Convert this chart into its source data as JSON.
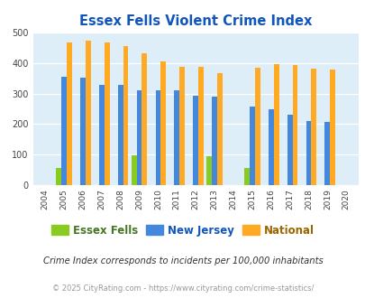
{
  "title": "Essex Fells Violent Crime Index",
  "years": [
    2004,
    2005,
    2006,
    2007,
    2008,
    2009,
    2010,
    2011,
    2012,
    2013,
    2014,
    2015,
    2016,
    2017,
    2018,
    2019,
    2020
  ],
  "essex_fells": [
    0,
    54,
    0,
    0,
    0,
    97,
    0,
    0,
    0,
    93,
    0,
    55,
    0,
    0,
    0,
    0,
    0
  ],
  "new_jersey": [
    0,
    356,
    352,
    330,
    330,
    312,
    310,
    310,
    293,
    289,
    0,
    256,
    248,
    231,
    211,
    207,
    0
  ],
  "national": [
    0,
    469,
    474,
    467,
    455,
    432,
    405,
    387,
    387,
    368,
    0,
    384,
    398,
    394,
    381,
    379,
    0
  ],
  "color_essex": "#88cc22",
  "color_nj": "#4488dd",
  "color_national": "#ffaa22",
  "plot_bg": "#ddeef8",
  "title_color": "#1155bb",
  "legend_essex": "Essex Fells",
  "legend_nj": "New Jersey",
  "legend_national": "National",
  "footnote1": "Crime Index corresponds to incidents per 100,000 inhabitants",
  "footnote2": "© 2025 CityRating.com - https://www.cityrating.com/crime-statistics/",
  "ylim": [
    0,
    500
  ],
  "yticks": [
    0,
    100,
    200,
    300,
    400,
    500
  ],
  "bar_width": 0.28
}
